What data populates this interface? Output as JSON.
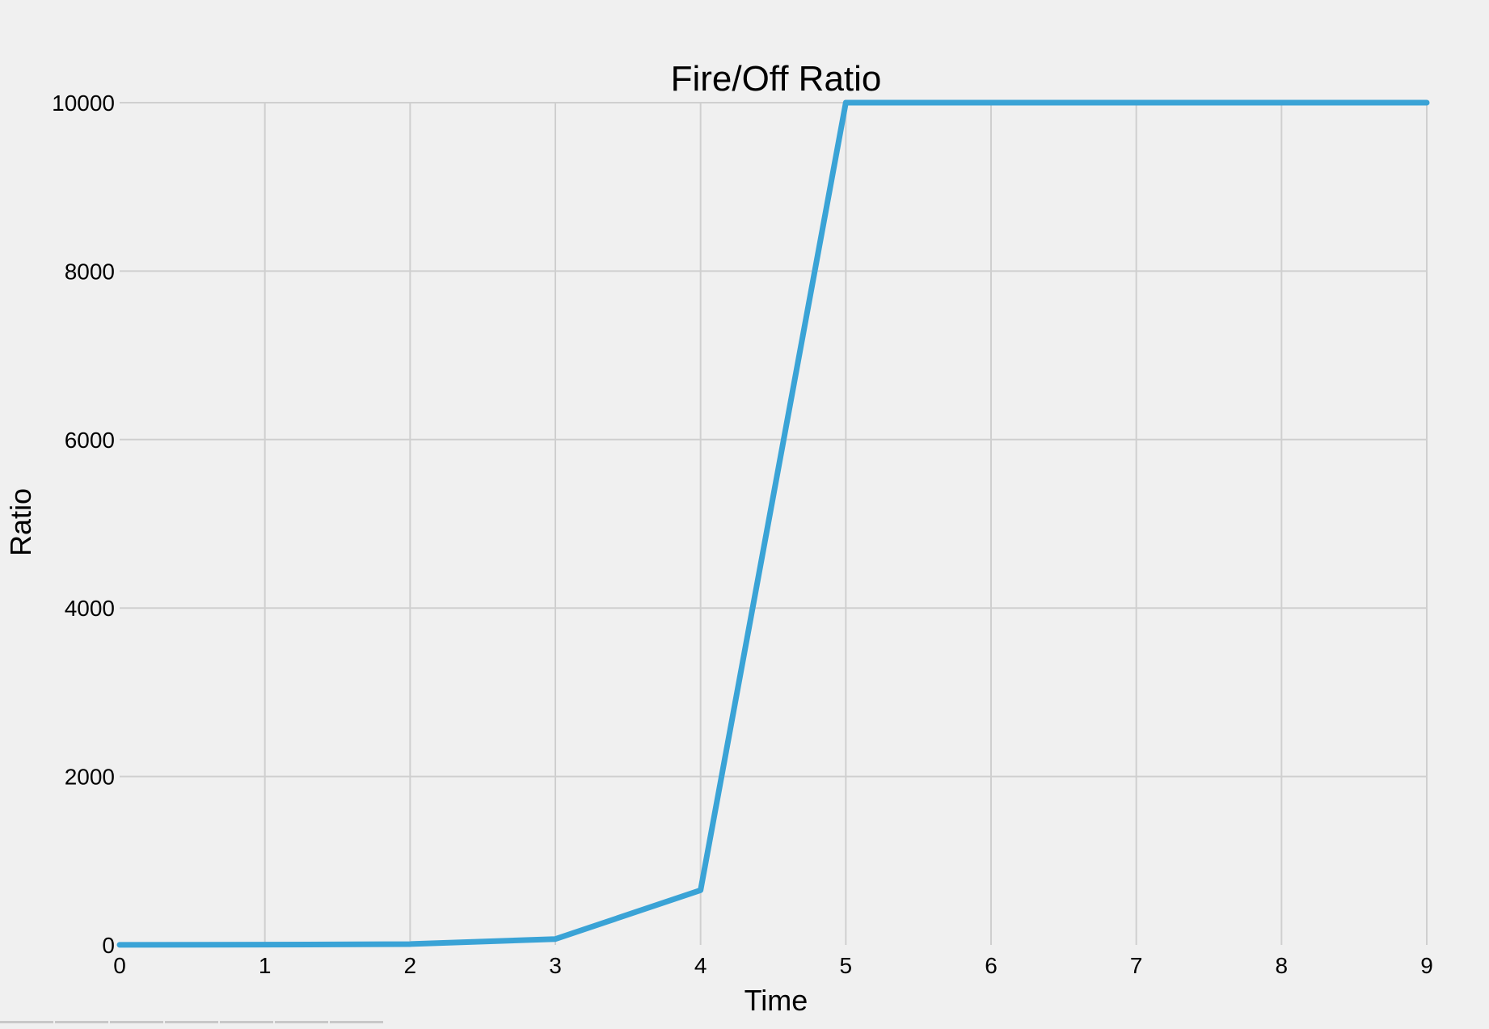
{
  "chart_data": {
    "type": "line",
    "title": "Fire/Off Ratio",
    "xlabel": "Time",
    "ylabel": "Ratio",
    "xlim": [
      0,
      9
    ],
    "ylim": [
      0,
      10000
    ],
    "x_ticks": [
      "0",
      "1",
      "2",
      "3",
      "4",
      "5",
      "6",
      "7",
      "8",
      "9"
    ],
    "y_ticks": [
      "0",
      "2000",
      "4000",
      "6000",
      "8000",
      "10000"
    ],
    "grid": true,
    "series": [
      {
        "color": "#3aa3d6",
        "x": [
          0,
          1,
          2,
          3,
          4,
          5,
          6,
          7,
          8,
          9
        ],
        "y": [
          1,
          3,
          10,
          70,
          650,
          10000,
          10000,
          10000,
          10000,
          10000
        ]
      }
    ]
  }
}
